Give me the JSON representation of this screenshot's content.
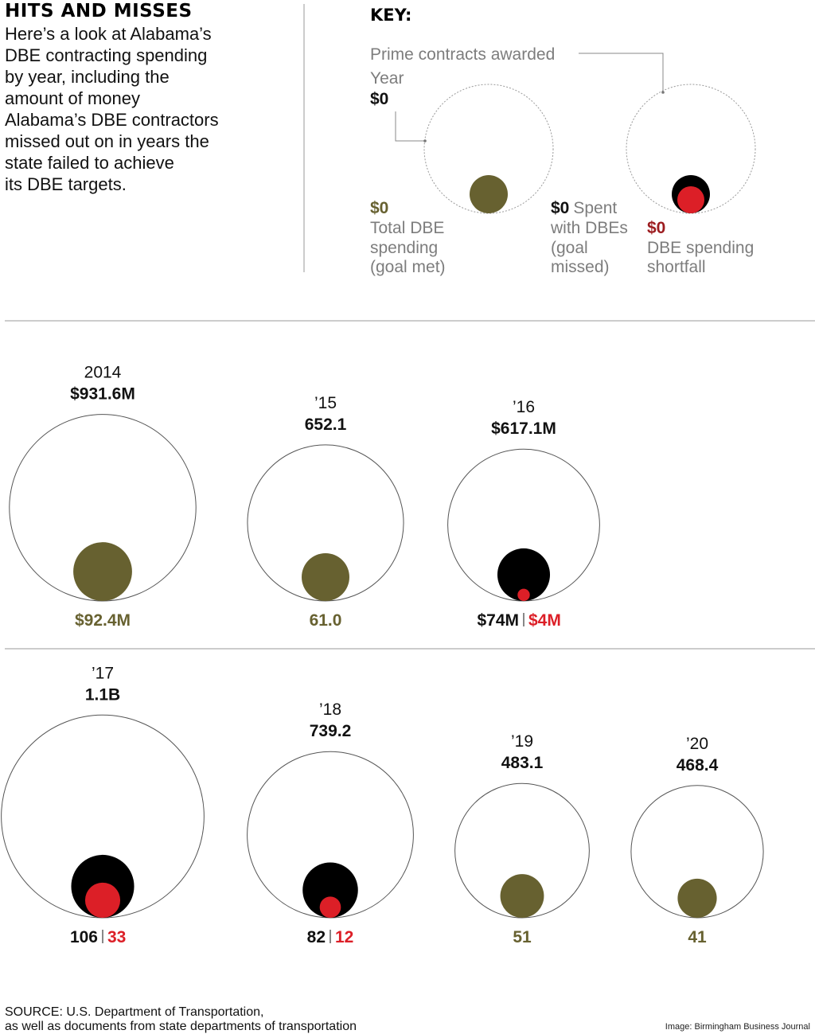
{
  "header": {
    "title": "HITS AND MISSES",
    "description_lines": [
      "Here’s a look at Alabama’s",
      "DBE contracting spending",
      "by year, including the",
      "amount of money",
      "Alabama’s DBE contractors",
      "missed out on in years the",
      "state failed to achieve",
      "its DBE targets."
    ]
  },
  "key": {
    "title": "KEY:",
    "prime_label": "Prime contracts awarded",
    "year_label": "Year",
    "year_value": "$0",
    "met_value": "$0",
    "met_lines": [
      "Total DBE",
      "spending",
      "(goal met)"
    ],
    "missed_value": "$0",
    "missed_first": "Spent",
    "missed_lines": [
      "with DBEs",
      "(goal",
      "missed)"
    ],
    "shortfall_value": "$0",
    "shortfall_lines": [
      "DBE spending",
      "shortfall"
    ]
  },
  "colors": {
    "goal_met": "#676130",
    "spent_missed": "#000000",
    "shortfall": "#dc1f27",
    "shortfall_text": "#9c1c1f",
    "outline": "#555555",
    "divider": "#999999"
  },
  "chart_data": {
    "type": "bubble",
    "units": "millions of dollars",
    "years": [
      {
        "year_label": "2014",
        "prime_label": "$931.6M",
        "prime": 931.6,
        "goal_met": true,
        "dbe_label": "$92.4M",
        "dbe": 92.4
      },
      {
        "year_label": "’15",
        "prime_label": "652.1",
        "prime": 652.1,
        "goal_met": true,
        "dbe_label": "61.0",
        "dbe": 61.0
      },
      {
        "year_label": "’16",
        "prime_label": "$617.1M",
        "prime": 617.1,
        "goal_met": false,
        "dbe_label": "$74M",
        "dbe": 74,
        "shortfall_label": "$4M",
        "shortfall": 4
      },
      {
        "year_label": "’17",
        "prime_label": "1.1B",
        "prime": 1100,
        "goal_met": false,
        "dbe_label": "106",
        "dbe": 106,
        "shortfall_label": "33",
        "shortfall": 33
      },
      {
        "year_label": "’18",
        "prime_label": "739.2",
        "prime": 739.2,
        "goal_met": false,
        "dbe_label": "82",
        "dbe": 82,
        "shortfall_label": "12",
        "shortfall": 12
      },
      {
        "year_label": "’19",
        "prime_label": "483.1",
        "prime": 483.1,
        "goal_met": true,
        "dbe_label": "51",
        "dbe": 51
      },
      {
        "year_label": "’20",
        "prime_label": "468.4",
        "prime": 468.4,
        "goal_met": true,
        "dbe_label": "41",
        "dbe": 41
      }
    ]
  },
  "footer": {
    "source_lines": [
      "SOURCE: U.S. Department of Transportation,",
      "as well as documents from state departments of transportation"
    ],
    "credit": "Image: Birmingham Business Journal"
  }
}
